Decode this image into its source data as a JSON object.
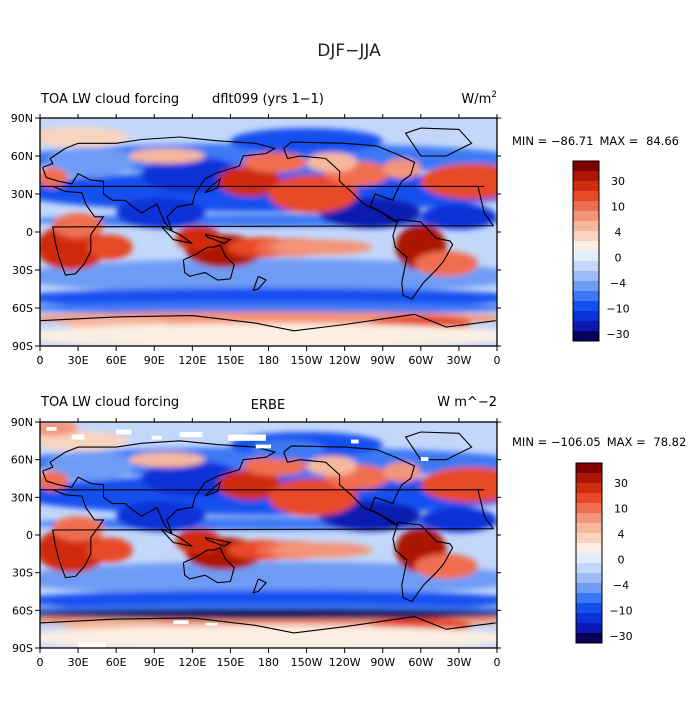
{
  "page": {
    "title": "DJF−JJA"
  },
  "panels": [
    {
      "left_title": "TOA LW cloud forcing",
      "center_title": "dflt099 (yrs 1−1)",
      "units_label": "W/m",
      "units_sup": "2",
      "min_label": "MIN = ",
      "min_value": "−86.71",
      "max_label": "MAX = ",
      "max_value": "84.66"
    },
    {
      "left_title": "TOA LW cloud forcing",
      "center_title": "ERBE",
      "units_label": "W m^−2",
      "units_sup": "",
      "min_label": "MIN = ",
      "min_value": "−106.05",
      "max_label": "MAX = ",
      "max_value": "78.82"
    }
  ],
  "chart_data": [
    {
      "type": "heatmap",
      "subtype": "global-map-filled-contour",
      "title": "TOA LW cloud forcing dflt099 (yrs 1−1)",
      "units": "W/m^2",
      "min": -86.71,
      "max": 84.66,
      "x_ticks": [
        "0",
        "30E",
        "60E",
        "90E",
        "120E",
        "150E",
        "180",
        "150W",
        "120W",
        "90W",
        "60W",
        "30W",
        "0"
      ],
      "y_ticks": [
        "90N",
        "60N",
        "30N",
        "0",
        "30S",
        "60S",
        "90S"
      ],
      "colorbar_labels": [
        "30",
        "10",
        "4",
        "0",
        "−4",
        "−10",
        "−30"
      ],
      "colorbar_levels": [
        -50,
        -40,
        -30,
        -20,
        -15,
        -10,
        -6,
        -4,
        -2,
        0,
        2,
        4,
        6,
        10,
        15,
        20,
        30,
        40,
        50
      ]
    },
    {
      "type": "heatmap",
      "subtype": "global-map-filled-contour",
      "title": "TOA LW cloud forcing ERBE",
      "units": "W m^-2",
      "min": -106.05,
      "max": 78.82,
      "x_ticks": [
        "0",
        "30E",
        "60E",
        "90E",
        "120E",
        "150E",
        "180",
        "150W",
        "120W",
        "90W",
        "60W",
        "30W",
        "0"
      ],
      "y_ticks": [
        "90N",
        "60N",
        "30N",
        "0",
        "30S",
        "60S",
        "90S"
      ],
      "colorbar_labels": [
        "30",
        "10",
        "4",
        "0",
        "−4",
        "−10",
        "−30"
      ],
      "colorbar_levels": [
        -50,
        -40,
        -30,
        -20,
        -15,
        -10,
        -6,
        -4,
        -2,
        0,
        2,
        4,
        6,
        10,
        15,
        20,
        30,
        40,
        50
      ]
    }
  ],
  "colors": {
    "palette": [
      "#08005a",
      "#0a1ab0",
      "#0a32d8",
      "#1450f0",
      "#3c78f5",
      "#6e9cf5",
      "#9cbcf7",
      "#c3d7fa",
      "#e1ecfc",
      "#fbeee2",
      "#f8d4c0",
      "#f6b89c",
      "#f49478",
      "#f06e50",
      "#e84a28",
      "#d02c0e",
      "#ac1606",
      "#800000"
    ],
    "ocean_base": "#d9e6fb",
    "coast": "#000000"
  }
}
